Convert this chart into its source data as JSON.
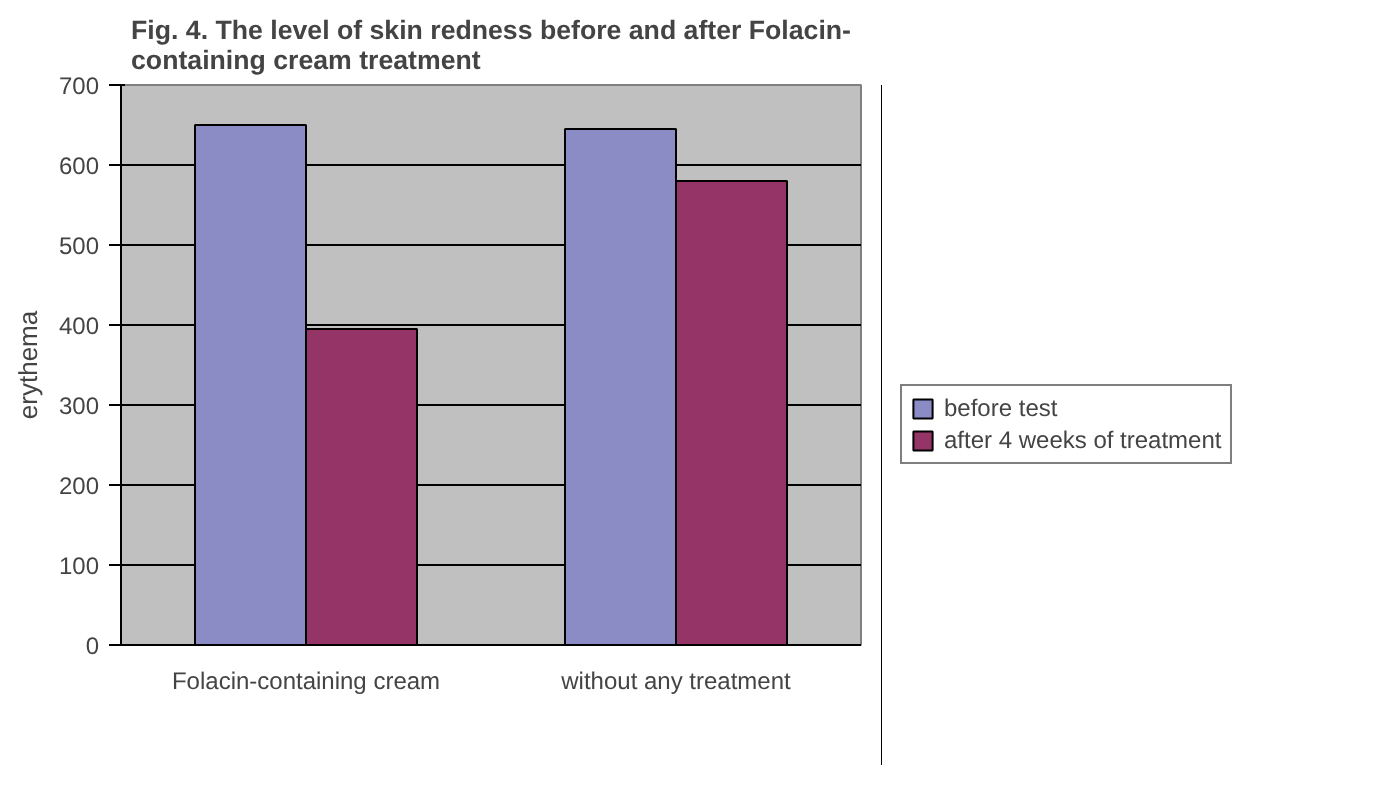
{
  "chart_data": {
    "type": "bar",
    "title": "Fig. 4. The level of skin redness before and after Folacin-\ncontaining cream treatment",
    "ylabel": "erythema",
    "categories": [
      "Folacin-containing cream",
      "without any treatment"
    ],
    "series": [
      {
        "name": "before test",
        "color": "#8b8cc6",
        "values": [
          650,
          645
        ]
      },
      {
        "name": "after 4 weeks of treatment",
        "color": "#953567",
        "values": [
          395,
          580
        ]
      }
    ],
    "ylim": [
      0,
      700
    ],
    "yticks": [
      0,
      100,
      200,
      300,
      400,
      500,
      600,
      700
    ],
    "grid": "y",
    "legend": "right"
  }
}
